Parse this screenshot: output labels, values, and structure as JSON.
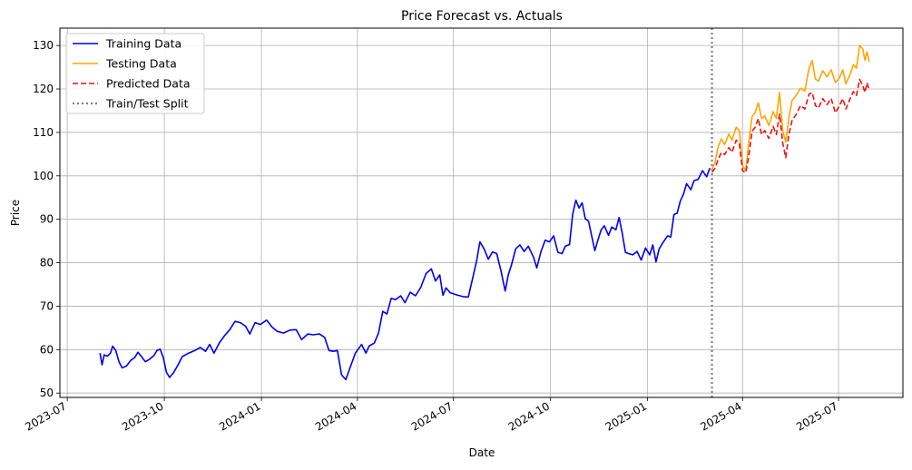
{
  "chart_data": {
    "type": "line",
    "title": "Price Forecast vs. Actuals",
    "xlabel": "Date",
    "ylabel": "Price",
    "grid": true,
    "legend_position": "top-left",
    "xlim": [
      "2023-06-24",
      "2025-08-31"
    ],
    "ylim": [
      49,
      134
    ],
    "x_ticks": [
      {
        "date": "2023-07-01",
        "label": "2023-07"
      },
      {
        "date": "2023-10-01",
        "label": "2023-10"
      },
      {
        "date": "2024-01-01",
        "label": "2024-01"
      },
      {
        "date": "2024-04-01",
        "label": "2024-04"
      },
      {
        "date": "2024-07-01",
        "label": "2024-07"
      },
      {
        "date": "2024-10-01",
        "label": "2024-10"
      },
      {
        "date": "2025-01-01",
        "label": "2025-01"
      },
      {
        "date": "2025-04-01",
        "label": "2025-04"
      },
      {
        "date": "2025-07-01",
        "label": "2025-07"
      }
    ],
    "y_ticks": [
      50,
      60,
      70,
      80,
      90,
      100,
      110,
      120,
      130
    ],
    "split_date": "2025-03-03",
    "series": [
      {
        "name": "Training Data",
        "color": "#0000ee",
        "style": "solid",
        "points": [
          [
            "2023-08-01",
            59.2
          ],
          [
            "2023-08-03",
            56.5
          ],
          [
            "2023-08-05",
            58.8
          ],
          [
            "2023-08-08",
            58.5
          ],
          [
            "2023-08-11",
            59.2
          ],
          [
            "2023-08-13",
            60.8
          ],
          [
            "2023-08-16",
            59.8
          ],
          [
            "2023-08-19",
            57.2
          ],
          [
            "2023-08-22",
            55.8
          ],
          [
            "2023-08-26",
            56.2
          ],
          [
            "2023-08-30",
            57.5
          ],
          [
            "2023-09-03",
            58.2
          ],
          [
            "2023-09-06",
            59.4
          ],
          [
            "2023-09-09",
            58.5
          ],
          [
            "2023-09-13",
            57.2
          ],
          [
            "2023-09-17",
            57.8
          ],
          [
            "2023-09-21",
            58.6
          ],
          [
            "2023-09-24",
            59.8
          ],
          [
            "2023-09-27",
            60.1
          ],
          [
            "2023-09-30",
            58.2
          ],
          [
            "2023-10-03",
            54.8
          ],
          [
            "2023-10-06",
            53.6
          ],
          [
            "2023-10-10",
            54.8
          ],
          [
            "2023-10-14",
            56.5
          ],
          [
            "2023-10-18",
            58.4
          ],
          [
            "2023-10-24",
            59.2
          ],
          [
            "2023-10-30",
            59.8
          ],
          [
            "2023-11-04",
            60.5
          ],
          [
            "2023-11-09",
            59.6
          ],
          [
            "2023-11-13",
            61.2
          ],
          [
            "2023-11-17",
            59.2
          ],
          [
            "2023-11-22",
            61.5
          ],
          [
            "2023-11-27",
            63.2
          ],
          [
            "2023-12-02",
            64.6
          ],
          [
            "2023-12-07",
            66.5
          ],
          [
            "2023-12-12",
            66.2
          ],
          [
            "2023-12-17",
            65.4
          ],
          [
            "2023-12-21",
            63.6
          ],
          [
            "2023-12-26",
            66.2
          ],
          [
            "2023-12-31",
            65.8
          ],
          [
            "2024-01-06",
            66.8
          ],
          [
            "2024-01-11",
            65.2
          ],
          [
            "2024-01-16",
            64.2
          ],
          [
            "2024-01-22",
            63.8
          ],
          [
            "2024-01-28",
            64.5
          ],
          [
            "2024-02-03",
            64.6
          ],
          [
            "2024-02-08",
            62.3
          ],
          [
            "2024-02-14",
            63.6
          ],
          [
            "2024-02-19",
            63.4
          ],
          [
            "2024-02-25",
            63.6
          ],
          [
            "2024-03-01",
            62.8
          ],
          [
            "2024-03-05",
            59.8
          ],
          [
            "2024-03-09",
            59.6
          ],
          [
            "2024-03-13",
            59.8
          ],
          [
            "2024-03-17",
            54.2
          ],
          [
            "2024-03-21",
            53.1
          ],
          [
            "2024-03-25",
            55.8
          ],
          [
            "2024-03-30",
            59.2
          ],
          [
            "2024-04-05",
            61.2
          ],
          [
            "2024-04-09",
            59.2
          ],
          [
            "2024-04-12",
            60.8
          ],
          [
            "2024-04-17",
            61.5
          ],
          [
            "2024-04-21",
            63.8
          ],
          [
            "2024-04-25",
            68.8
          ],
          [
            "2024-04-29",
            68.2
          ],
          [
            "2024-05-03",
            71.8
          ],
          [
            "2024-05-07",
            71.5
          ],
          [
            "2024-05-12",
            72.4
          ],
          [
            "2024-05-16",
            70.8
          ],
          [
            "2024-05-21",
            73.2
          ],
          [
            "2024-05-26",
            72.4
          ],
          [
            "2024-05-31",
            74.3
          ],
          [
            "2024-06-05",
            77.5
          ],
          [
            "2024-06-10",
            78.6
          ],
          [
            "2024-06-14",
            75.8
          ],
          [
            "2024-06-18",
            77.2
          ],
          [
            "2024-06-21",
            72.5
          ],
          [
            "2024-06-24",
            74.2
          ],
          [
            "2024-06-28",
            73.1
          ],
          [
            "2024-07-04",
            72.6
          ],
          [
            "2024-07-10",
            72.2
          ],
          [
            "2024-07-15",
            72.1
          ],
          [
            "2024-07-19",
            76.2
          ],
          [
            "2024-07-23",
            80.5
          ],
          [
            "2024-07-26",
            84.8
          ],
          [
            "2024-07-30",
            83.2
          ],
          [
            "2024-08-03",
            80.8
          ],
          [
            "2024-08-07",
            82.5
          ],
          [
            "2024-08-11",
            82.1
          ],
          [
            "2024-08-15",
            78.2
          ],
          [
            "2024-08-19",
            73.5
          ],
          [
            "2024-08-22",
            77.2
          ],
          [
            "2024-08-25",
            79.5
          ],
          [
            "2024-08-29",
            83.2
          ],
          [
            "2024-09-02",
            84.1
          ],
          [
            "2024-09-06",
            82.6
          ],
          [
            "2024-09-10",
            83.8
          ],
          [
            "2024-09-15",
            81.2
          ],
          [
            "2024-09-18",
            78.8
          ],
          [
            "2024-09-22",
            82.6
          ],
          [
            "2024-09-26",
            85.2
          ],
          [
            "2024-09-30",
            84.8
          ],
          [
            "2024-10-04",
            86.2
          ],
          [
            "2024-10-08",
            82.4
          ],
          [
            "2024-10-12",
            82.1
          ],
          [
            "2024-10-15",
            83.8
          ],
          [
            "2024-10-19",
            84.2
          ],
          [
            "2024-10-22",
            91.2
          ],
          [
            "2024-10-25",
            94.4
          ],
          [
            "2024-10-28",
            92.6
          ],
          [
            "2024-10-31",
            93.8
          ],
          [
            "2024-11-03",
            90.1
          ],
          [
            "2024-11-06",
            89.6
          ],
          [
            "2024-11-09",
            86.2
          ],
          [
            "2024-11-12",
            82.8
          ],
          [
            "2024-11-15",
            85.3
          ],
          [
            "2024-11-18",
            87.6
          ],
          [
            "2024-11-21",
            88.5
          ],
          [
            "2024-11-25",
            86.3
          ],
          [
            "2024-11-28",
            88.2
          ],
          [
            "2024-12-02",
            87.6
          ],
          [
            "2024-12-05",
            90.4
          ],
          [
            "2024-12-08",
            86.8
          ],
          [
            "2024-12-11",
            82.4
          ],
          [
            "2024-12-14",
            82.1
          ],
          [
            "2024-12-18",
            81.8
          ],
          [
            "2024-12-22",
            82.6
          ],
          [
            "2024-12-26",
            80.6
          ],
          [
            "2024-12-30",
            83.4
          ],
          [
            "2025-01-03",
            81.8
          ],
          [
            "2025-01-06",
            84.1
          ],
          [
            "2025-01-09",
            80.2
          ],
          [
            "2025-01-12",
            83.2
          ],
          [
            "2025-01-16",
            84.8
          ],
          [
            "2025-01-20",
            86.2
          ],
          [
            "2025-01-23",
            85.9
          ],
          [
            "2025-01-26",
            91.1
          ],
          [
            "2025-01-29",
            91.4
          ],
          [
            "2025-02-01",
            94.2
          ],
          [
            "2025-02-04",
            95.8
          ],
          [
            "2025-02-07",
            98.2
          ],
          [
            "2025-02-11",
            96.8
          ],
          [
            "2025-02-14",
            98.9
          ],
          [
            "2025-02-18",
            99.2
          ],
          [
            "2025-02-22",
            101.2
          ],
          [
            "2025-02-26",
            99.8
          ],
          [
            "2025-03-01",
            101.8
          ]
        ]
      },
      {
        "name": "Testing Data",
        "color": "#ffa500",
        "style": "solid",
        "points": [
          [
            "2025-03-03",
            101.5
          ],
          [
            "2025-03-06",
            103.2
          ],
          [
            "2025-03-09",
            106.8
          ],
          [
            "2025-03-12",
            108.5
          ],
          [
            "2025-03-15",
            107.2
          ],
          [
            "2025-03-19",
            109.6
          ],
          [
            "2025-03-22",
            108.2
          ],
          [
            "2025-03-26",
            111.2
          ],
          [
            "2025-03-29",
            110.4
          ],
          [
            "2025-04-01",
            102.4
          ],
          [
            "2025-04-04",
            101.2
          ],
          [
            "2025-04-07",
            107.8
          ],
          [
            "2025-04-10",
            113.6
          ],
          [
            "2025-04-13",
            114.6
          ],
          [
            "2025-04-16",
            116.8
          ],
          [
            "2025-04-19",
            113.2
          ],
          [
            "2025-04-22",
            113.8
          ],
          [
            "2025-04-26",
            111.6
          ],
          [
            "2025-04-30",
            114.8
          ],
          [
            "2025-05-03",
            113.2
          ],
          [
            "2025-05-06",
            119.2
          ],
          [
            "2025-05-09",
            110.4
          ],
          [
            "2025-05-12",
            107.8
          ],
          [
            "2025-05-15",
            113.5
          ],
          [
            "2025-05-18",
            117.4
          ],
          [
            "2025-05-22",
            118.6
          ],
          [
            "2025-05-26",
            120.2
          ],
          [
            "2025-05-30",
            119.5
          ],
          [
            "2025-06-03",
            124.8
          ],
          [
            "2025-06-06",
            126.5
          ],
          [
            "2025-06-09",
            122.3
          ],
          [
            "2025-06-12",
            121.8
          ],
          [
            "2025-06-16",
            124.2
          ],
          [
            "2025-06-20",
            122.8
          ],
          [
            "2025-06-24",
            124.4
          ],
          [
            "2025-06-28",
            121.5
          ],
          [
            "2025-07-02",
            122.6
          ],
          [
            "2025-07-05",
            124.4
          ],
          [
            "2025-07-08",
            121.2
          ],
          [
            "2025-07-12",
            123.4
          ],
          [
            "2025-07-15",
            125.6
          ],
          [
            "2025-07-18",
            124.8
          ],
          [
            "2025-07-21",
            130.0
          ],
          [
            "2025-07-24",
            129.2
          ],
          [
            "2025-07-26",
            126.6
          ],
          [
            "2025-07-28",
            128.5
          ],
          [
            "2025-07-30",
            126.2
          ]
        ]
      },
      {
        "name": "Predicted Data",
        "color": "#ee1111",
        "style": "dashed",
        "points": [
          [
            "2025-03-03",
            100.8
          ],
          [
            "2025-03-06",
            101.8
          ],
          [
            "2025-03-09",
            103.8
          ],
          [
            "2025-03-12",
            105.4
          ],
          [
            "2025-03-15",
            104.9
          ],
          [
            "2025-03-19",
            106.5
          ],
          [
            "2025-03-22",
            105.4
          ],
          [
            "2025-03-26",
            108.2
          ],
          [
            "2025-03-29",
            107.4
          ],
          [
            "2025-04-01",
            101.2
          ],
          [
            "2025-04-04",
            100.7
          ],
          [
            "2025-04-07",
            104.6
          ],
          [
            "2025-04-10",
            110.2
          ],
          [
            "2025-04-13",
            111.2
          ],
          [
            "2025-04-16",
            113.2
          ],
          [
            "2025-04-19",
            109.5
          ],
          [
            "2025-04-22",
            110.4
          ],
          [
            "2025-04-26",
            108.6
          ],
          [
            "2025-04-30",
            111.4
          ],
          [
            "2025-05-03",
            109.5
          ],
          [
            "2025-05-06",
            114.2
          ],
          [
            "2025-05-09",
            107.6
          ],
          [
            "2025-05-12",
            104.2
          ],
          [
            "2025-05-15",
            109.6
          ],
          [
            "2025-05-18",
            112.8
          ],
          [
            "2025-05-22",
            114.2
          ],
          [
            "2025-05-26",
            116.2
          ],
          [
            "2025-05-30",
            115.4
          ],
          [
            "2025-06-03",
            118.8
          ],
          [
            "2025-06-06",
            119.2
          ],
          [
            "2025-06-09",
            116.2
          ],
          [
            "2025-06-12",
            115.6
          ],
          [
            "2025-06-16",
            117.8
          ],
          [
            "2025-06-20",
            116.4
          ],
          [
            "2025-06-24",
            117.8
          ],
          [
            "2025-06-28",
            114.5
          ],
          [
            "2025-07-02",
            116.2
          ],
          [
            "2025-07-05",
            117.8
          ],
          [
            "2025-07-08",
            115.4
          ],
          [
            "2025-07-12",
            117.8
          ],
          [
            "2025-07-15",
            119.4
          ],
          [
            "2025-07-18",
            118.5
          ],
          [
            "2025-07-21",
            122.2
          ],
          [
            "2025-07-24",
            120.8
          ],
          [
            "2025-07-26",
            119.2
          ],
          [
            "2025-07-28",
            121.4
          ],
          [
            "2025-07-30",
            119.8
          ]
        ]
      },
      {
        "name": "Train/Test Split",
        "color": "#808080",
        "style": "dotted"
      }
    ]
  }
}
